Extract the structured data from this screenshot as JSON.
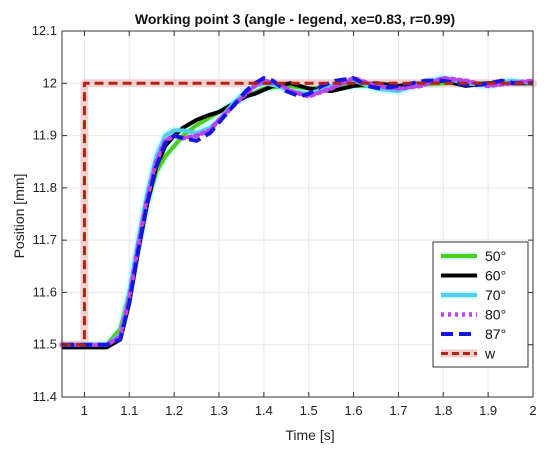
{
  "chart_data": {
    "type": "line",
    "title": "Working point 3  (angle - legend, xe=0.83, r=0.99)",
    "xlabel": "Time [s]",
    "ylabel": "Position [mm]",
    "xlim": [
      0.95,
      2.0
    ],
    "ylim": [
      11.4,
      12.1
    ],
    "xticks": [
      "1",
      "1.1",
      "1.2",
      "1.3",
      "1.4",
      "1.5",
      "1.6",
      "1.7",
      "1.8",
      "1.9",
      "2"
    ],
    "yticks": [
      "11.4",
      "11.5",
      "11.6",
      "11.7",
      "11.8",
      "11.9",
      "12",
      "12.1"
    ],
    "grid": true,
    "legend_position": "bottom-right",
    "series": [
      {
        "name": "50°",
        "color": "#4dcc1a",
        "style": "solid",
        "glow": "#c8fdfd",
        "x": [
          0.95,
          1.0,
          1.05,
          1.08,
          1.1,
          1.12,
          1.14,
          1.16,
          1.18,
          1.2,
          1.22,
          1.25,
          1.28,
          1.3,
          1.33,
          1.36,
          1.4,
          1.45,
          1.5,
          1.6,
          1.7,
          1.8,
          1.9,
          2.0
        ],
        "y": [
          11.5,
          11.5,
          11.5,
          11.53,
          11.6,
          11.69,
          11.77,
          11.83,
          11.86,
          11.88,
          11.9,
          11.92,
          11.935,
          11.945,
          11.96,
          11.975,
          11.99,
          11.995,
          11.99,
          11.995,
          11.995,
          12.0,
          12.0,
          12.0
        ]
      },
      {
        "name": "60°",
        "color": "#000000",
        "style": "solid",
        "glow": null,
        "x": [
          0.95,
          1.0,
          1.05,
          1.08,
          1.1,
          1.12,
          1.14,
          1.16,
          1.18,
          1.2,
          1.22,
          1.25,
          1.28,
          1.3,
          1.33,
          1.36,
          1.38,
          1.42,
          1.46,
          1.5,
          1.55,
          1.6,
          1.65,
          1.7,
          1.75,
          1.8,
          1.85,
          1.9,
          1.95,
          2.0
        ],
        "y": [
          11.495,
          11.495,
          11.495,
          11.51,
          11.58,
          11.68,
          11.77,
          11.84,
          11.88,
          11.9,
          11.915,
          11.93,
          11.94,
          11.945,
          11.96,
          11.975,
          11.98,
          11.995,
          12.0,
          11.99,
          11.985,
          11.995,
          12.0,
          11.995,
          12.0,
          12.005,
          11.995,
          12.0,
          12.0,
          12.0
        ]
      },
      {
        "name": "70°",
        "color": "#55ccf2",
        "style": "solid",
        "glow": "#c8fdfd",
        "x": [
          0.95,
          1.0,
          1.05,
          1.08,
          1.1,
          1.12,
          1.14,
          1.16,
          1.18,
          1.2,
          1.22,
          1.25,
          1.28,
          1.3,
          1.33,
          1.36,
          1.38,
          1.4,
          1.43,
          1.46,
          1.5,
          1.55,
          1.6,
          1.65,
          1.7,
          1.75,
          1.8,
          1.85,
          1.9,
          1.95,
          2.0
        ],
        "y": [
          11.5,
          11.5,
          11.5,
          11.52,
          11.6,
          11.7,
          11.79,
          11.86,
          11.9,
          11.91,
          11.91,
          11.905,
          11.915,
          11.93,
          11.96,
          11.985,
          11.995,
          12.0,
          11.995,
          11.985,
          11.98,
          11.995,
          12.005,
          11.99,
          11.985,
          12.0,
          12.01,
          12.0,
          11.995,
          12.005,
          12.0
        ]
      },
      {
        "name": "80°",
        "color": "#bb44ee",
        "style": "dotted",
        "glow": null,
        "x": [
          0.95,
          1.0,
          1.05,
          1.08,
          1.1,
          1.12,
          1.14,
          1.16,
          1.18,
          1.2,
          1.22,
          1.25,
          1.28,
          1.3,
          1.33,
          1.36,
          1.38,
          1.4,
          1.43,
          1.46,
          1.5,
          1.55,
          1.6,
          1.65,
          1.7,
          1.75,
          1.8,
          1.85,
          1.9,
          1.95,
          2.0
        ],
        "y": [
          11.5,
          11.5,
          11.5,
          11.515,
          11.59,
          11.69,
          11.78,
          11.85,
          11.89,
          11.9,
          11.895,
          11.9,
          11.91,
          11.93,
          11.955,
          11.98,
          11.995,
          12.005,
          12.0,
          11.985,
          11.975,
          11.99,
          12.01,
          11.995,
          11.99,
          11.995,
          12.01,
          12.005,
          11.995,
          12.0,
          12.005
        ]
      },
      {
        "name": "87°",
        "color": "#1515e0",
        "style": "dashed",
        "glow": null,
        "x": [
          0.95,
          1.0,
          1.05,
          1.08,
          1.1,
          1.12,
          1.14,
          1.16,
          1.18,
          1.2,
          1.22,
          1.25,
          1.28,
          1.3,
          1.33,
          1.36,
          1.38,
          1.4,
          1.42,
          1.45,
          1.48,
          1.5,
          1.53,
          1.56,
          1.6,
          1.63,
          1.66,
          1.7,
          1.73,
          1.76,
          1.8,
          1.83,
          1.86,
          1.9,
          1.93,
          1.96,
          2.0
        ],
        "y": [
          11.5,
          11.5,
          11.5,
          11.51,
          11.58,
          11.68,
          11.77,
          11.84,
          11.885,
          11.9,
          11.895,
          11.89,
          11.905,
          11.925,
          11.955,
          11.985,
          12.0,
          12.01,
          12.005,
          11.985,
          11.975,
          11.98,
          11.995,
          12.005,
          12.01,
          11.995,
          11.99,
          11.995,
          12.0,
          12.005,
          12.005,
          12.0,
          11.995,
          12.0,
          12.005,
          12.0,
          12.0
        ]
      },
      {
        "name": "w",
        "color": "#b02418",
        "style": "dashed",
        "glow": "#f2cccc",
        "x": [
          0.95,
          1.0,
          1.0,
          2.0
        ],
        "y": [
          11.5,
          11.5,
          12.0,
          12.0
        ]
      }
    ]
  }
}
